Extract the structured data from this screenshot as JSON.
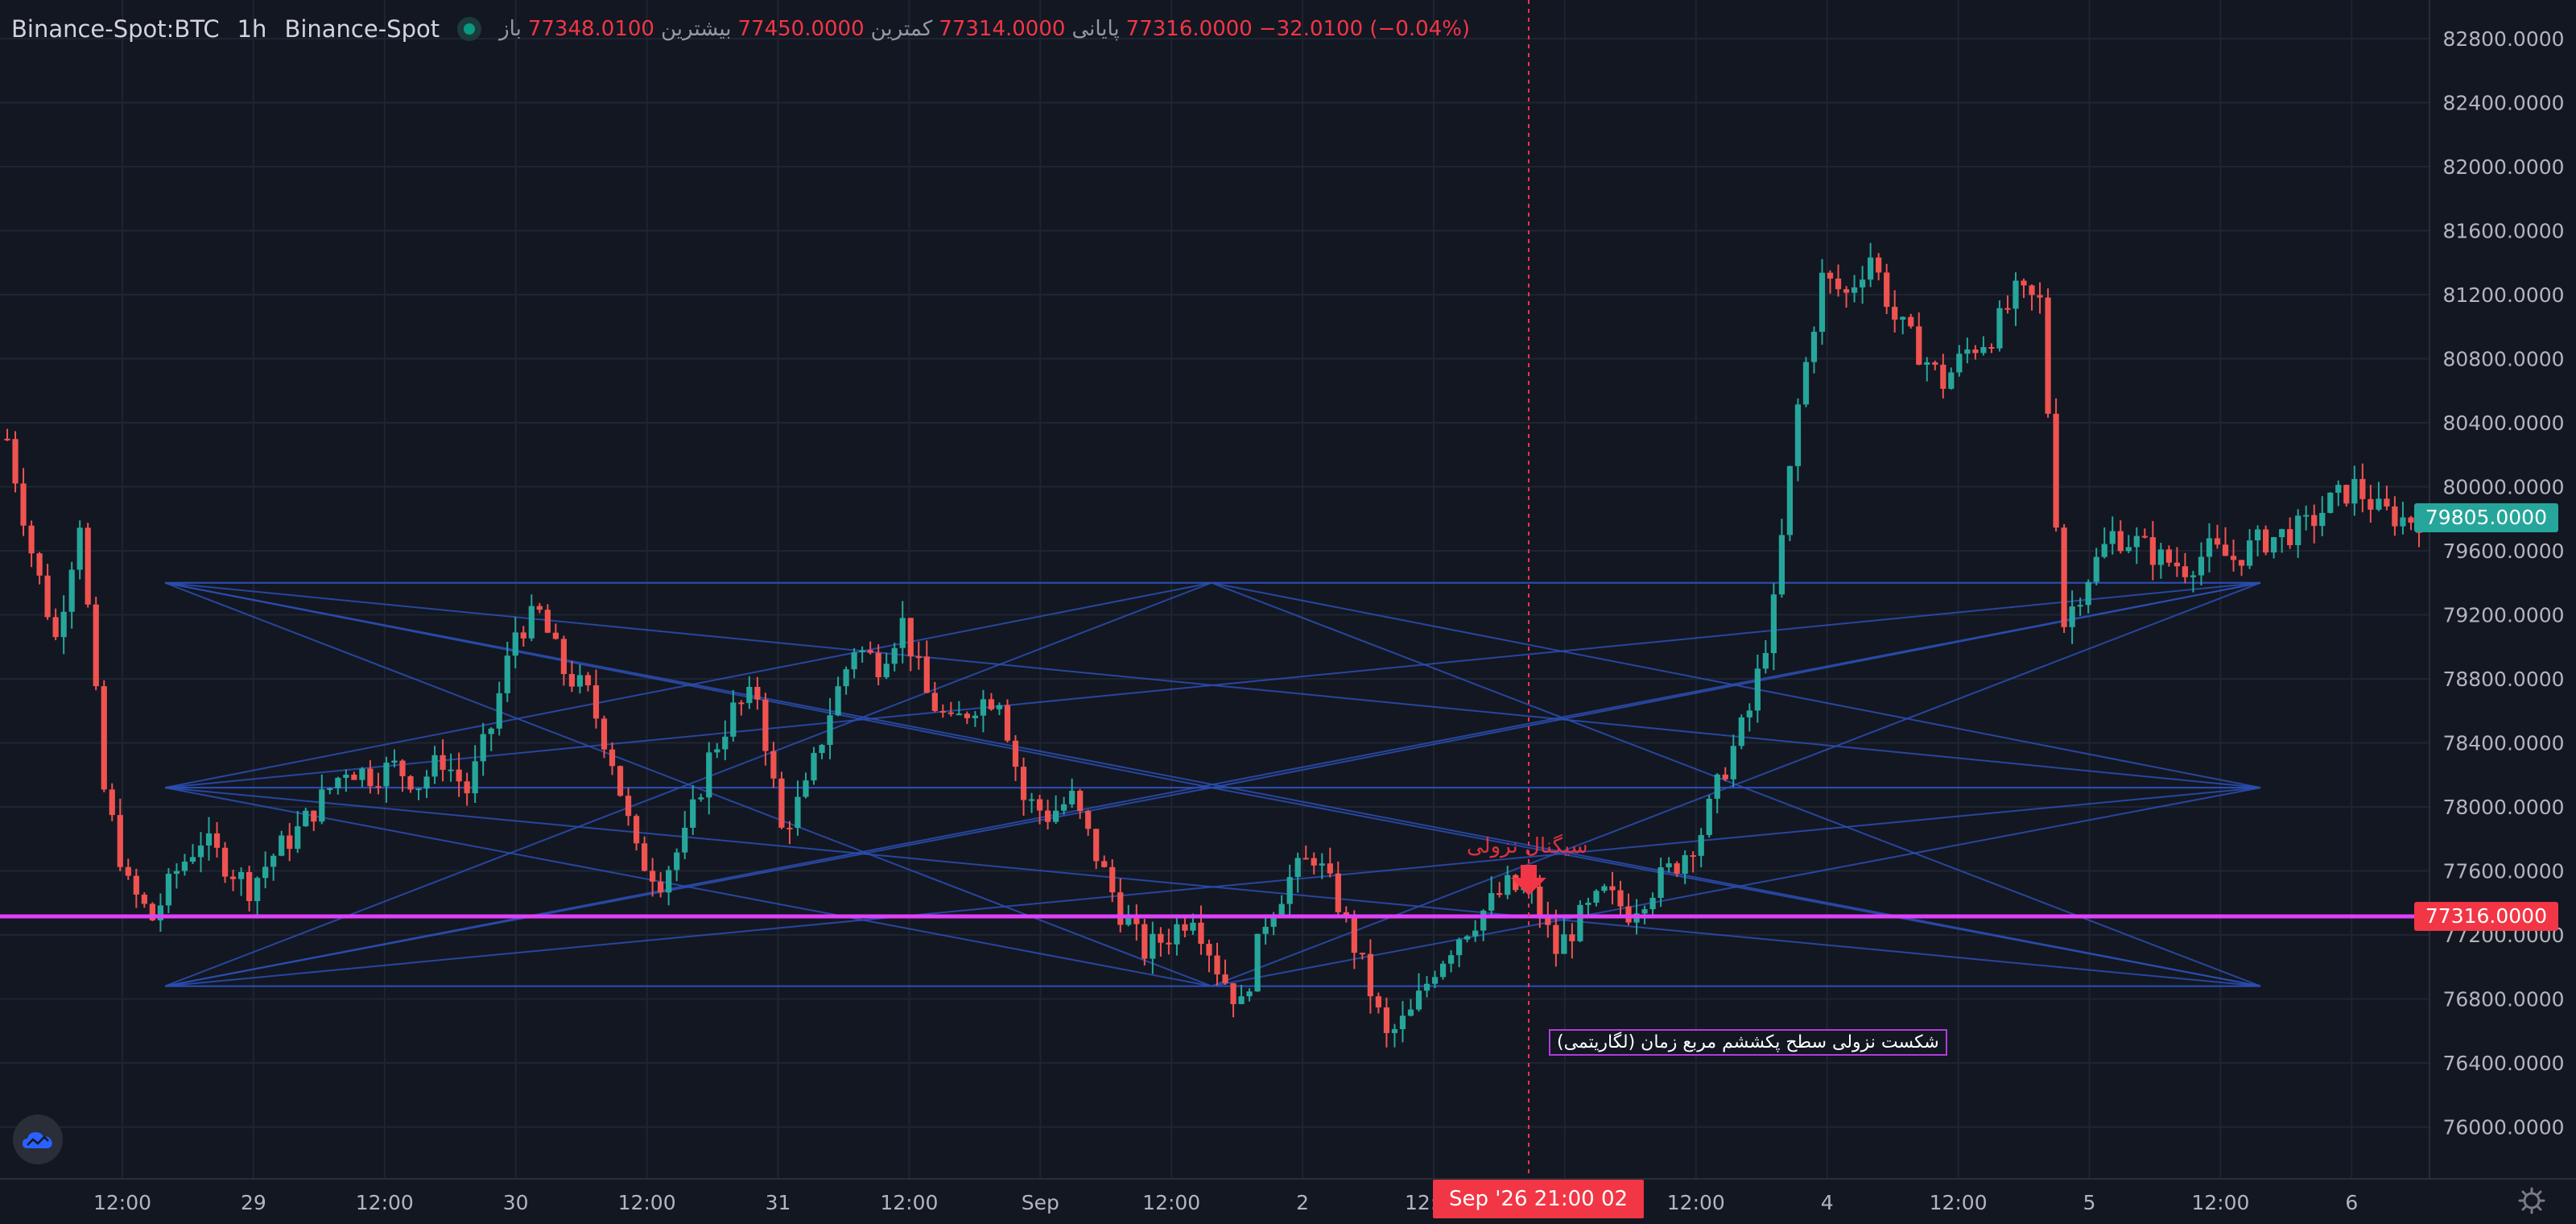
{
  "legend": {
    "symbol": "Binance-Spot:BTC",
    "interval": "1h",
    "exchange": "Binance-Spot",
    "open_label": "باز",
    "open": "77348.0100",
    "high_label": "بیشترین",
    "high": "77450.0000",
    "low_label": "کمترین",
    "low": "77314.0000",
    "close_label": "پایانی",
    "close": "77316.0000",
    "change": "−32.0100 (−0.04%)"
  },
  "price_axis": {
    "ticks": [
      "82800.0000",
      "82400.0000",
      "82000.0000",
      "81600.0000",
      "81200.0000",
      "80800.0000",
      "80400.0000",
      "80000.0000",
      "79600.0000",
      "79200.0000",
      "78800.0000",
      "78400.0000",
      "78000.0000",
      "77600.0000",
      "77200.0000",
      "76800.0000",
      "76400.0000",
      "76000.0000"
    ],
    "last_price_label": "79805.0000",
    "horizontal_line_label": "77316.0000"
  },
  "time_axis": {
    "ticks": [
      "12:00",
      "29",
      "12:00",
      "30",
      "12:00",
      "31",
      "12:00",
      "Sep",
      "12:00",
      "2",
      "12:00",
      "3",
      "12:00",
      "4",
      "12:00",
      "5",
      "12:00",
      "6"
    ]
  },
  "cursor": {
    "label": "Sep '26   21:00 02"
  },
  "annotations": {
    "signal": "سیگنال نزولی",
    "box_text": "شکست نزولی سطح پکششم مربع زمان (لگاریتمی)"
  },
  "colors": {
    "background": "#131722",
    "up": "#26a69a",
    "down": "#ef5350",
    "grid": "#1f2433",
    "pattern_lines": "#2b4fb3",
    "magenta_level": "#e040fb",
    "cursor": "#f23645"
  },
  "icons": {
    "logo": "tradingview-cloud-icon",
    "settings": "gear-icon"
  },
  "chart_data": {
    "type": "candlestick",
    "symbol": "Binance-Spot:BTC",
    "interval": "1h",
    "ylim": [
      75800,
      83000
    ],
    "x_categories": [
      "28 12:00",
      "29",
      "29 12:00",
      "30",
      "30 12:00",
      "31",
      "31 12:00",
      "Sep 1",
      "1 12:00",
      "2",
      "2 12:00",
      "3",
      "3 12:00",
      "4",
      "4 12:00",
      "5",
      "5 12:00",
      "6"
    ],
    "last_price": 79805,
    "horizontal_level": 77316,
    "pattern_anchor_prices": [
      79400,
      78120,
      76880
    ],
    "price_path": [
      [
        80300,
        79600,
        79050,
        79800,
        78100,
        77500,
        77300,
        77600,
        77800,
        77650,
        77500,
        77700,
        77850,
        78050,
        78250,
        78200,
        78250,
        78150,
        78300,
        78100,
        78500,
        79100,
        79200,
        78850,
        78700,
        78300,
        77700,
        77550,
        77800,
        78300,
        78600,
        78700,
        77850,
        78100,
        78600,
        79000,
        78900,
        79150,
        78700,
        78500,
        78650,
        78700,
        78050,
        77950,
        78050,
        77700,
        77350,
        77100,
        77200,
        77350,
        77000,
        76750,
        77300,
        77550,
        77700,
        77400,
        77000,
        76550,
        76700,
        77000,
        77200,
        77350,
        77500,
        77450,
        77100,
        77300,
        77450,
        77350,
        77500,
        77650,
        77850,
        78250,
        78600,
        79250,
        80500,
        81300,
        81200,
        81450,
        81050,
        80850,
        80650,
        80850,
        80950,
        81200,
        81150,
        79150,
        79450,
        79700,
        79650,
        79550,
        79500,
        79600,
        79550,
        79650,
        79700,
        79750,
        79900,
        80000,
        79850,
        79800
      ]
    ]
  }
}
